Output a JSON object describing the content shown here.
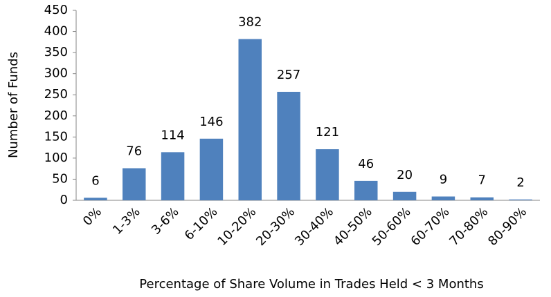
{
  "chart_data": {
    "type": "bar",
    "categories": [
      "0%",
      "1-3%",
      "3-6%",
      "6-10%",
      "10-20%",
      "20-30%",
      "30-40%",
      "40-50%",
      "50-60%",
      "60-70%",
      "70-80%",
      "80-90%"
    ],
    "values": [
      6,
      76,
      114,
      146,
      382,
      257,
      121,
      46,
      20,
      9,
      7,
      2
    ],
    "color": "#4f81bd",
    "ylim": [
      0,
      450
    ],
    "yticks": [
      0,
      50,
      100,
      150,
      200,
      250,
      300,
      350,
      400,
      450
    ],
    "grid": false,
    "x_label": "Percentage of Share Volume in Trades Held < 3 Months",
    "y_label": "Number of Funds"
  }
}
